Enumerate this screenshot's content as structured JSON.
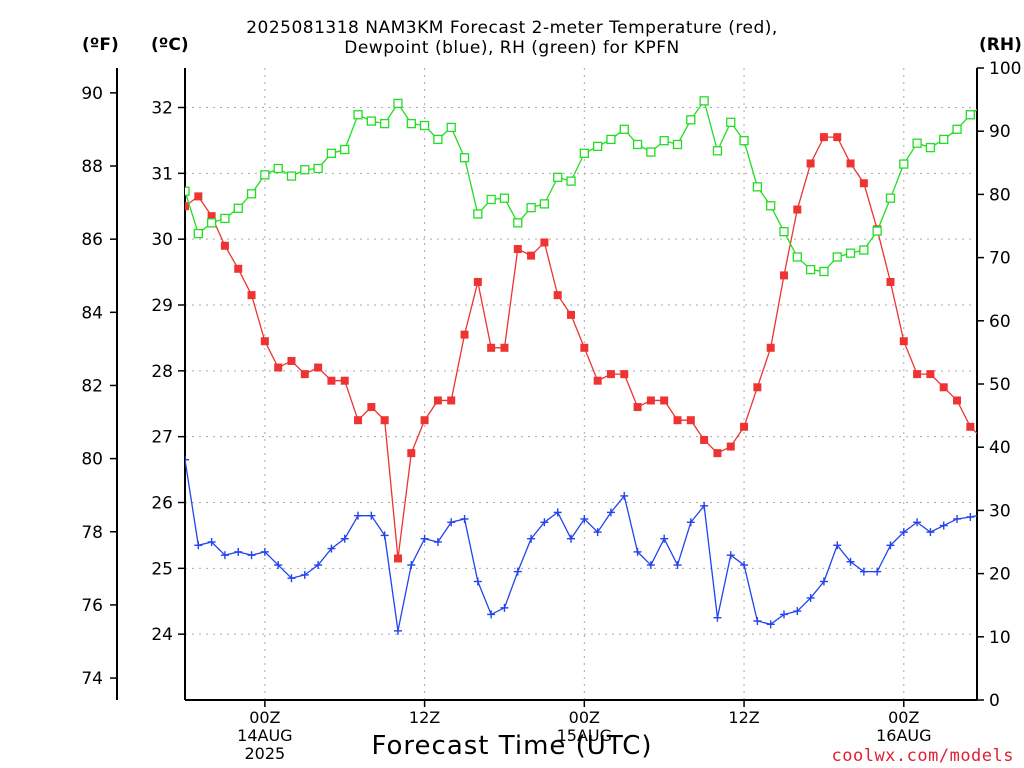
{
  "title": {
    "line1": "2025081318 NAM3KM Forecast 2-meter Temperature (red),",
    "line2": "Dewpoint (blue), RH (green) for KPFN"
  },
  "units": {
    "fahrenheit": "(ºF)",
    "celsius": "(ºC)",
    "rh": "(RH)"
  },
  "xlabel": "Forecast Time (UTC)",
  "credit": "coolwx.com/models",
  "colors": {
    "temperature": "#ee3333",
    "dewpoint": "#2244ee",
    "rh": "#22dd22",
    "grid": "#aaaaaa",
    "axis": "#000000"
  },
  "chart_data": {
    "type": "line",
    "title": "2025081318 NAM3KM Forecast 2-meter Temperature (red), Dewpoint (blue), RH (green) for KPFN",
    "xlabel": "Forecast Time (UTC)",
    "x_unit": "forecast hour from 2025-08-13 18Z",
    "xlim": [
      0,
      59.5
    ],
    "grid": true,
    "x_ticks": [
      {
        "x": 6,
        "labels": [
          "00Z",
          "14AUG",
          "2025"
        ]
      },
      {
        "x": 18,
        "labels": [
          "12Z"
        ]
      },
      {
        "x": 30,
        "labels": [
          "00Z",
          "15AUG"
        ]
      },
      {
        "x": 42,
        "labels": [
          "12Z"
        ]
      },
      {
        "x": 54,
        "labels": [
          "00Z",
          "16AUG"
        ]
      }
    ],
    "y_axes": {
      "celsius": {
        "ylim": [
          23.0,
          32.6
        ],
        "ticks": [
          24,
          25,
          26,
          27,
          28,
          29,
          30,
          31,
          32
        ]
      },
      "fahrenheit": {
        "ylim": [
          73.4,
          90.68
        ],
        "ticks": [
          74,
          76,
          78,
          80,
          82,
          84,
          86,
          88,
          90
        ]
      },
      "rh": {
        "ylim": [
          0,
          100
        ],
        "ticks": [
          0,
          10,
          20,
          30,
          40,
          50,
          60,
          70,
          80,
          90,
          100
        ]
      }
    },
    "series": [
      {
        "key": "temperature",
        "axis": "celsius",
        "marker": "filled-square",
        "x": [
          0,
          1,
          2,
          3,
          4,
          5,
          6,
          7,
          8,
          9,
          10,
          11,
          12,
          13,
          14,
          15,
          16,
          17,
          18,
          19,
          20,
          21,
          22,
          23,
          24,
          25,
          26,
          27,
          28,
          29,
          30,
          31,
          32,
          33,
          34,
          35,
          36,
          37,
          38,
          39,
          40,
          41,
          42,
          43,
          44,
          45,
          46,
          47,
          48,
          49,
          50,
          51,
          52,
          53,
          54,
          55,
          56,
          57,
          58,
          59,
          60
        ],
        "values": [
          30.5,
          30.65,
          30.35,
          29.9,
          29.55,
          29.15,
          28.45,
          28.05,
          28.15,
          27.95,
          28.05,
          27.85,
          27.85,
          27.25,
          27.45,
          27.25,
          25.15,
          26.75,
          27.25,
          27.55,
          27.55,
          28.55,
          29.35,
          28.35,
          28.35,
          29.85,
          29.75,
          29.95,
          29.15,
          28.85,
          28.35,
          27.85,
          27.95,
          27.95,
          27.45,
          27.55,
          27.55,
          27.25,
          27.25,
          26.95,
          26.75,
          26.85,
          27.15,
          27.75,
          28.35,
          29.45,
          30.45,
          31.15,
          31.55,
          31.55,
          31.15,
          30.85,
          30.15,
          29.35,
          28.45,
          27.95,
          27.95,
          27.75,
          27.55,
          27.15,
          26.95
        ]
      },
      {
        "key": "dewpoint",
        "axis": "celsius",
        "marker": "plus",
        "x": [
          0,
          1,
          2,
          3,
          4,
          5,
          6,
          7,
          8,
          9,
          10,
          11,
          12,
          13,
          14,
          15,
          16,
          17,
          18,
          19,
          20,
          21,
          22,
          23,
          24,
          25,
          26,
          27,
          28,
          29,
          30,
          31,
          32,
          33,
          34,
          35,
          36,
          37,
          38,
          39,
          40,
          41,
          42,
          43,
          44,
          45,
          46,
          47,
          48,
          49,
          50,
          51,
          52,
          53,
          54,
          55,
          56,
          57,
          58,
          59,
          60
        ],
        "values": [
          26.65,
          25.35,
          25.4,
          25.2,
          25.25,
          25.2,
          25.25,
          25.05,
          24.85,
          24.9,
          25.05,
          25.3,
          25.45,
          25.8,
          25.8,
          25.5,
          24.05,
          25.05,
          25.45,
          25.4,
          25.7,
          25.75,
          24.8,
          24.3,
          24.4,
          24.95,
          25.45,
          25.7,
          25.85,
          25.45,
          25.75,
          25.55,
          25.85,
          26.1,
          25.25,
          25.05,
          25.45,
          25.05,
          25.7,
          25.95,
          24.25,
          25.2,
          25.05,
          24.2,
          24.15,
          24.3,
          24.35,
          24.55,
          24.8,
          25.35,
          25.1,
          24.95,
          24.95,
          25.35,
          25.55,
          25.7,
          25.55,
          25.65,
          25.75,
          25.78,
          25.82
        ]
      },
      {
        "key": "rh",
        "axis": "rh",
        "marker": "open-square",
        "x": [
          0,
          1,
          2,
          3,
          4,
          5,
          6,
          7,
          8,
          9,
          10,
          11,
          12,
          13,
          14,
          15,
          16,
          17,
          18,
          19,
          20,
          21,
          22,
          23,
          24,
          25,
          26,
          27,
          28,
          29,
          30,
          31,
          32,
          33,
          34,
          35,
          36,
          37,
          38,
          39,
          40,
          41,
          42,
          43,
          44,
          45,
          46,
          47,
          48,
          49,
          50,
          51,
          52,
          53,
          54,
          55,
          56,
          57,
          58,
          59,
          60
        ],
        "values": [
          80.5,
          73.8,
          75.5,
          76.2,
          77.8,
          80.1,
          83.1,
          84.1,
          82.9,
          83.9,
          84.1,
          86.5,
          87.1,
          92.6,
          91.6,
          91.2,
          94.4,
          91.2,
          90.9,
          88.7,
          90.6,
          85.8,
          76.9,
          79.2,
          79.4,
          75.5,
          77.9,
          78.5,
          82.7,
          82.1,
          86.5,
          87.6,
          88.7,
          90.3,
          87.9,
          86.7,
          88.5,
          87.9,
          91.8,
          94.8,
          86.9,
          91.4,
          88.5,
          81.2,
          78.2,
          74.1,
          70.1,
          68.1,
          67.8,
          70.1,
          70.7,
          71.2,
          74.2,
          79.4,
          84.8,
          88.1,
          87.4,
          88.7,
          90.3,
          92.6,
          94.2
        ]
      }
    ]
  }
}
